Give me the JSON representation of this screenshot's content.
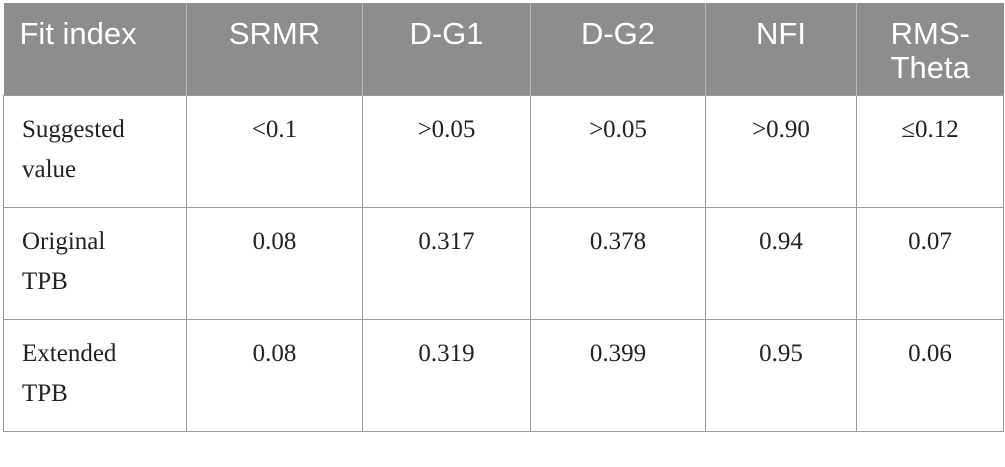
{
  "table": {
    "headers": [
      "Fit index",
      "SRMR",
      "D-G1",
      "D-G2",
      "NFI",
      "RMS-\nTheta"
    ],
    "rows": [
      {
        "label": "Suggested\nvalue",
        "cells": [
          "<0.1",
          ">0.05",
          ">0.05",
          ">0.90",
          "≤0.12"
        ]
      },
      {
        "label": "Original\nTPB",
        "cells": [
          "0.08",
          "0.317",
          "0.378",
          "0.94",
          "0.07"
        ]
      },
      {
        "label": "Extended\nTPB",
        "cells": [
          "0.08",
          "0.319",
          "0.399",
          "0.95",
          "0.06"
        ]
      }
    ]
  },
  "colors": {
    "header_background": "#8d8d8d",
    "header_text": "#ffffff",
    "border": "#9a9a9a"
  }
}
